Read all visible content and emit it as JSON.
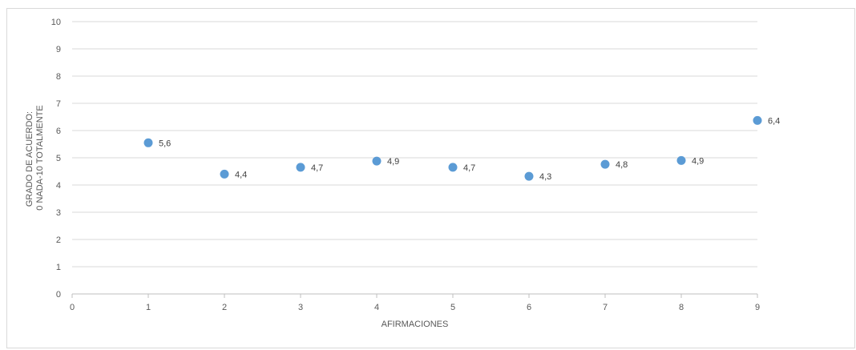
{
  "chart_data": {
    "type": "scatter",
    "xlabel": "AFIRMACIONES",
    "ylabel_lines": [
      "GRADO DE ACUERDO:",
      "0 NADA-10 TOTALMENTE"
    ],
    "xlim": [
      0,
      9
    ],
    "ylim": [
      0,
      10
    ],
    "x_ticks": [
      "0",
      "1",
      "2",
      "3",
      "4",
      "5",
      "6",
      "7",
      "8",
      "9"
    ],
    "y_ticks": [
      "0",
      "1",
      "2",
      "3",
      "4",
      "5",
      "6",
      "7",
      "8",
      "9",
      "10"
    ],
    "grid": true,
    "marker_color": "#5b9bd5",
    "points": [
      {
        "x": 1,
        "y": 5.55,
        "label": "5,6"
      },
      {
        "x": 2,
        "y": 4.4,
        "label": "4,4"
      },
      {
        "x": 3,
        "y": 4.65,
        "label": "4,7"
      },
      {
        "x": 4,
        "y": 4.88,
        "label": "4,9"
      },
      {
        "x": 5,
        "y": 4.65,
        "label": "4,7"
      },
      {
        "x": 6,
        "y": 4.32,
        "label": "4,3"
      },
      {
        "x": 7,
        "y": 4.76,
        "label": "4,8"
      },
      {
        "x": 8,
        "y": 4.9,
        "label": "4,9"
      },
      {
        "x": 9,
        "y": 6.37,
        "label": "6,4"
      }
    ]
  }
}
